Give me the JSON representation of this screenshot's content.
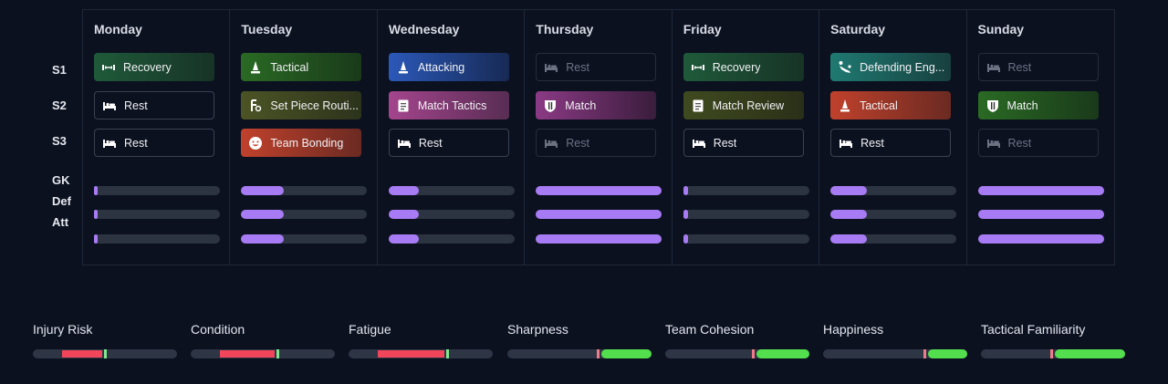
{
  "row_labels": [
    "S1",
    "S2",
    "S3",
    "GK",
    "Def",
    "Att"
  ],
  "days": [
    {
      "name": "Monday",
      "sessions": [
        {
          "label": "Recovery",
          "type": "recovery",
          "icon": "dumbbell-icon"
        },
        {
          "label": "Rest",
          "type": "rest",
          "icon": "bed-icon"
        },
        {
          "label": "Rest",
          "type": "rest",
          "icon": "bed-icon"
        }
      ],
      "intensity": [
        0.02,
        0.02,
        0.02
      ]
    },
    {
      "name": "Tuesday",
      "sessions": [
        {
          "label": "Tactical",
          "type": "tactical-green",
          "icon": "cone-icon"
        },
        {
          "label": "Set Piece Routi...",
          "type": "setpiece",
          "icon": "set-piece-icon"
        },
        {
          "label": "Team Bonding",
          "type": "bonding",
          "icon": "smiley-icon"
        }
      ],
      "intensity": [
        0.34,
        0.34,
        0.34
      ]
    },
    {
      "name": "Wednesday",
      "sessions": [
        {
          "label": "Attacking",
          "type": "attacking",
          "icon": "cone-icon"
        },
        {
          "label": "Match Tactics",
          "type": "matchtactics",
          "icon": "clipboard-icon"
        },
        {
          "label": "Rest",
          "type": "rest",
          "icon": "bed-icon"
        }
      ],
      "intensity": [
        0.24,
        0.24,
        0.24
      ]
    },
    {
      "name": "Thursday",
      "sessions": [
        {
          "label": "Rest",
          "type": "rest-dim",
          "icon": "bed-icon"
        },
        {
          "label": "Match",
          "type": "match-purple",
          "icon": "shield-icon"
        },
        {
          "label": "Rest",
          "type": "rest-dim",
          "icon": "bed-icon"
        }
      ],
      "intensity": [
        1.0,
        1.0,
        1.0
      ]
    },
    {
      "name": "Friday",
      "sessions": [
        {
          "label": "Recovery",
          "type": "recovery",
          "icon": "dumbbell-icon"
        },
        {
          "label": "Match Review",
          "type": "matchreview",
          "icon": "clipboard-icon"
        },
        {
          "label": "Rest",
          "type": "rest",
          "icon": "bed-icon"
        }
      ],
      "intensity": [
        0.04,
        0.04,
        0.04
      ]
    },
    {
      "name": "Saturday",
      "sessions": [
        {
          "label": "Defending Eng...",
          "type": "defending",
          "icon": "tackle-icon"
        },
        {
          "label": "Tactical",
          "type": "tactical-red",
          "icon": "cone-icon"
        },
        {
          "label": "Rest",
          "type": "rest",
          "icon": "bed-icon"
        }
      ],
      "intensity": [
        0.29,
        0.29,
        0.29
      ]
    },
    {
      "name": "Sunday",
      "sessions": [
        {
          "label": "Rest",
          "type": "rest-dim",
          "icon": "bed-icon"
        },
        {
          "label": "Match",
          "type": "match-green",
          "icon": "shield-icon"
        },
        {
          "label": "Rest",
          "type": "rest-dim",
          "icon": "bed-icon"
        }
      ],
      "intensity": [
        1.0,
        1.0,
        1.0
      ]
    }
  ],
  "session_colors": {
    "recovery": [
      "#1f5a3a",
      "#173326"
    ],
    "tactical-green": [
      "#2a6a24",
      "#1a3a1a"
    ],
    "setpiece": [
      "#4c5425",
      "#2c331c"
    ],
    "bonding": [
      "#c0412c",
      "#6b2a22"
    ],
    "attacking": [
      "#2b58b8",
      "#172a55"
    ],
    "matchtactics": [
      "#a4458d",
      "#582d53"
    ],
    "match-purple": [
      "#8b3a85",
      "#3a1d3c"
    ],
    "matchreview": [
      "#3f4a1f",
      "#2a3018"
    ],
    "defending": [
      "#1f7a72",
      "#17403f"
    ],
    "tactical-red": [
      "#c0412c",
      "#6b2a22"
    ],
    "match-green": [
      "#2a6a24",
      "#1a3a1a"
    ]
  },
  "stats": [
    {
      "label": "Injury Risk",
      "neg": 0.28,
      "pos": 0.0
    },
    {
      "label": "Condition",
      "neg": 0.38,
      "pos": 0.0
    },
    {
      "label": "Fatigue",
      "neg": 0.46,
      "pos": 0.0
    },
    {
      "label": "Sharpness",
      "neg": 0.0,
      "pos": 0.35
    },
    {
      "label": "Team Cohesion",
      "neg": 0.0,
      "pos": 0.37
    },
    {
      "label": "Happiness",
      "neg": 0.0,
      "pos": 0.27
    },
    {
      "label": "Tactical Familiarity",
      "neg": 0.0,
      "pos": 0.49
    }
  ]
}
